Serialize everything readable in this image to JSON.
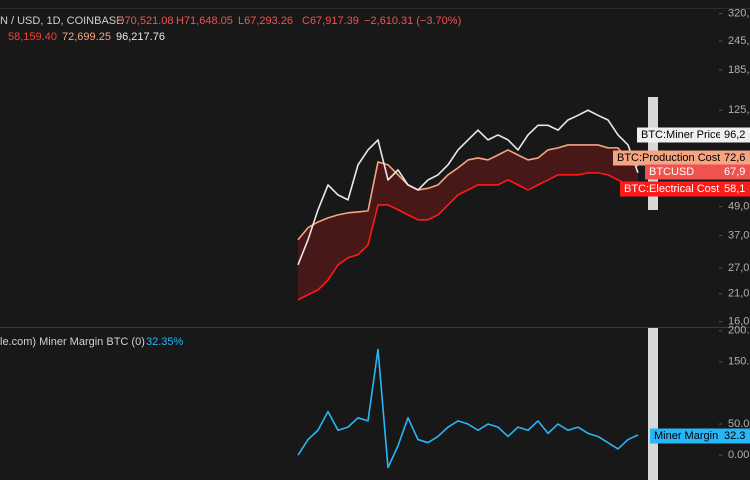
{
  "header": {
    "symbol": "N / USD, 1D, COINBASE",
    "open": "O70,521.08",
    "high": "H71,648.05",
    "low": "L67,293.26",
    "close": "C67,917.39",
    "change": "−2,610.31 (−3.70%)",
    "indicator_values": [
      {
        "text": "58,159.40",
        "color": "#ff3b30"
      },
      {
        "text": "72,699.25",
        "color": "#f4a582"
      },
      {
        "text": "96,217.76",
        "color": "#e8e8e8"
      }
    ]
  },
  "chart_data": [
    {
      "type": "line",
      "log_scale": true,
      "ylim": [
        15200,
        365000
      ],
      "yticks": [
        {
          "value": 320000,
          "label": "320,"
        },
        {
          "value": 245000,
          "label": "245,"
        },
        {
          "value": 185000,
          "label": "185,"
        },
        {
          "value": 125000,
          "label": "125,"
        },
        {
          "value": 49000,
          "label": "49,0"
        },
        {
          "value": 37000,
          "label": "37,0"
        },
        {
          "value": 27000,
          "label": "27,0"
        },
        {
          "value": 21000,
          "label": "21,0"
        },
        {
          "value": 16000,
          "label": "16,0"
        }
      ],
      "band_fill": "rgba(130,25,25,0.45)",
      "reference_tag": {
        "name": "BTC:Miner Price",
        "tag": "96,2",
        "color": "#f0f0f0",
        "text_color": "#000000"
      },
      "series": [
        {
          "name": "BTC:Production Cost",
          "tag": "72,6",
          "color": "#f4a582",
          "text_color": "#000000",
          "values": [
            35500,
            39900,
            42200,
            43900,
            45200,
            46100,
            46500,
            47000,
            75600,
            73500,
            66700,
            60500,
            57600,
            58500,
            60500,
            66700,
            71400,
            77100,
            78600,
            77100,
            80900,
            85000,
            80900,
            77100,
            78600,
            85000,
            86700,
            89200,
            89200,
            89200,
            89200,
            86700,
            86700,
            77100,
            72700
          ]
        },
        {
          "name": "BTCUSD",
          "tag": "67,9",
          "color": "#e8e8e8",
          "tag_color": "#ef5350",
          "text_color": "#ffffff",
          "values": [
            27800,
            35500,
            47500,
            60500,
            54900,
            52300,
            73500,
            85000,
            93700,
            63500,
            70000,
            60500,
            57600,
            63500,
            66700,
            73500,
            85000,
            93700,
            103000,
            93700,
            98300,
            93700,
            85000,
            98300,
            108000,
            108000,
            103000,
            113700,
            119000,
            125000,
            119000,
            113700,
            98300,
            89200,
            68000
          ]
        },
        {
          "name": "BTC:Electrical Cost",
          "tag": "58,1",
          "color": "#ff1a1a",
          "text_color": "#ffffff",
          "values": [
            19800,
            20800,
            21800,
            24000,
            27800,
            29800,
            30700,
            33800,
            49800,
            49800,
            47500,
            45200,
            43100,
            43100,
            45200,
            49800,
            54900,
            57600,
            60500,
            60500,
            60500,
            63500,
            60500,
            57600,
            60500,
            63500,
            66700,
            66700,
            66700,
            68000,
            68000,
            66700,
            63500,
            60500,
            58200
          ]
        }
      ]
    },
    {
      "type": "line",
      "title": "le.com) Miner Margin BTC (0)",
      "title_value": "32.35%",
      "ylim": [
        -40,
        206
      ],
      "yticks": [
        {
          "value": 200,
          "label": "200."
        },
        {
          "value": 150,
          "label": "150."
        },
        {
          "value": 50,
          "label": "50.00"
        },
        {
          "value": 0,
          "label": "0.00"
        }
      ],
      "series": [
        {
          "name": "Miner Margin",
          "tag": "32.3",
          "color": "#29b6f6",
          "text_color": "#000000",
          "values": [
            0,
            25,
            40,
            70,
            40,
            45,
            60,
            55,
            170,
            -20,
            15,
            60,
            25,
            20,
            30,
            45,
            55,
            50,
            40,
            50,
            45,
            30,
            45,
            40,
            55,
            35,
            50,
            40,
            45,
            35,
            30,
            20,
            10,
            25,
            32.35
          ]
        }
      ]
    }
  ]
}
